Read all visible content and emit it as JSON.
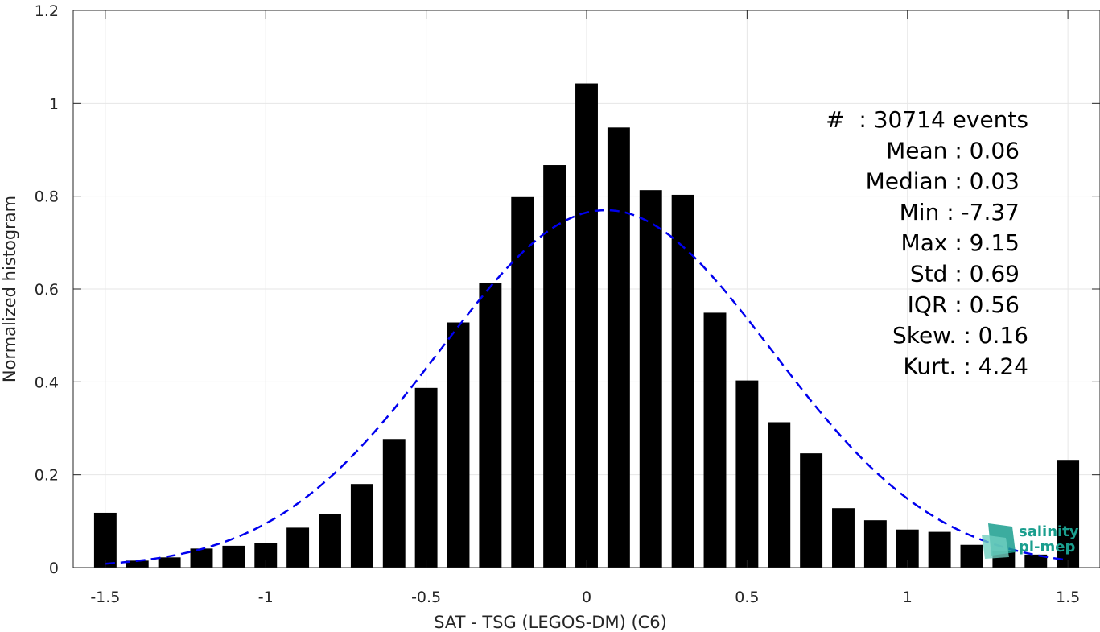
{
  "chart_data": {
    "type": "bar",
    "xlabel": "SAT - TSG (LEGOS-DM) (C6)",
    "ylabel": "Normalized histogram",
    "xlim": [
      -1.6,
      1.6
    ],
    "ylim": [
      0,
      1.2
    ],
    "xticks": [
      -1.5,
      -1,
      -0.5,
      0,
      0.5,
      1,
      1.5
    ],
    "xtick_labels": [
      "-1.5",
      "-1",
      "-0.5",
      "0",
      "0.5",
      "1",
      "1.5"
    ],
    "yticks": [
      0,
      0.2,
      0.4,
      0.6,
      0.8,
      1,
      1.2
    ],
    "ytick_labels": [
      "0",
      "0.2",
      "0.4",
      "0.6",
      "0.8",
      "1",
      "1.2"
    ],
    "grid": true,
    "bar_color": "#000000",
    "bar_width": 0.07,
    "bins": {
      "x": [
        -1.5,
        -1.4,
        -1.3,
        -1.2,
        -1.1,
        -1.0,
        -0.9,
        -0.8,
        -0.7,
        -0.6,
        -0.5,
        -0.4,
        -0.3,
        -0.2,
        -0.1,
        0.0,
        0.1,
        0.2,
        0.3,
        0.4,
        0.5,
        0.6,
        0.7,
        0.8,
        0.9,
        1.0,
        1.1,
        1.2,
        1.3,
        1.4,
        1.5
      ],
      "values": [
        0.118,
        0.015,
        0.022,
        0.041,
        0.047,
        0.053,
        0.086,
        0.115,
        0.18,
        0.277,
        0.387,
        0.528,
        0.613,
        0.798,
        0.867,
        1.043,
        0.948,
        0.813,
        0.803,
        0.549,
        0.403,
        0.313,
        0.246,
        0.128,
        0.102,
        0.082,
        0.077,
        0.049,
        0.036,
        0.028,
        0.232
      ]
    },
    "fit_curve": {
      "style": "dashed",
      "color": "#0000ee",
      "mean": 0.06,
      "peak": 0.77,
      "sigma": 0.518,
      "x_range": [
        -1.5,
        1.5
      ]
    },
    "stats": [
      "#  : 30714 events",
      "Mean : 0.06",
      "Median : 0.03",
      "Min : -7.37",
      "Max : 9.15",
      "Std : 0.69",
      "IQR : 0.56",
      "Skew. : 0.16",
      "Kurt. : 4.24"
    ]
  },
  "logo": {
    "line1": "salinity",
    "line2": "pi-mep",
    "color": "#1a9e8e"
  }
}
